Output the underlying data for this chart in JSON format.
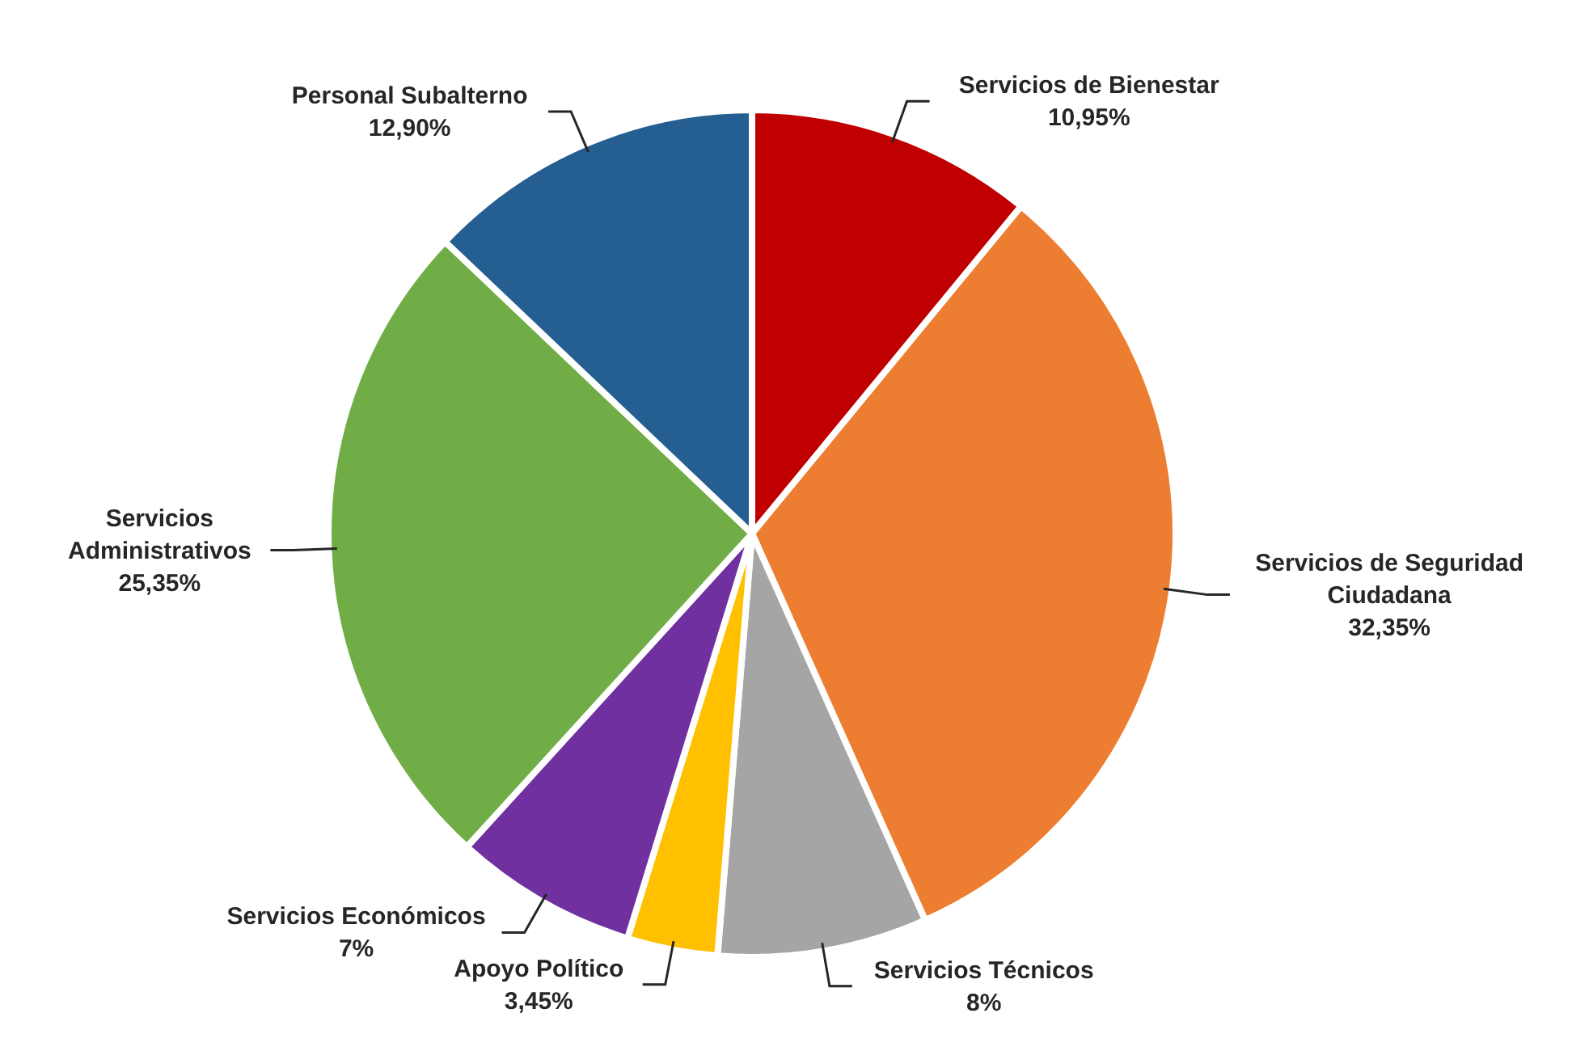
{
  "chart_data": {
    "type": "pie",
    "categories": [
      "Servicios de Bienestar",
      "Servicios de Seguridad Ciudadana",
      "Servicios Técnicos",
      "Apoyo Político",
      "Servicios Económicos",
      "Servicios Administrativos",
      "Personal Subalterno"
    ],
    "values": [
      10.95,
      32.35,
      8,
      3.45,
      7,
      25.35,
      12.9
    ],
    "colors": [
      "#c00000",
      "#ed7d31",
      "#a5a5a5",
      "#ffc000",
      "#7030a0",
      "#70ad47",
      "#255e91"
    ],
    "value_labels": [
      "10,95%",
      "32,35%",
      "8%",
      "3,45%",
      "7%",
      "25,35%",
      "12,90%"
    ],
    "legend": false
  }
}
